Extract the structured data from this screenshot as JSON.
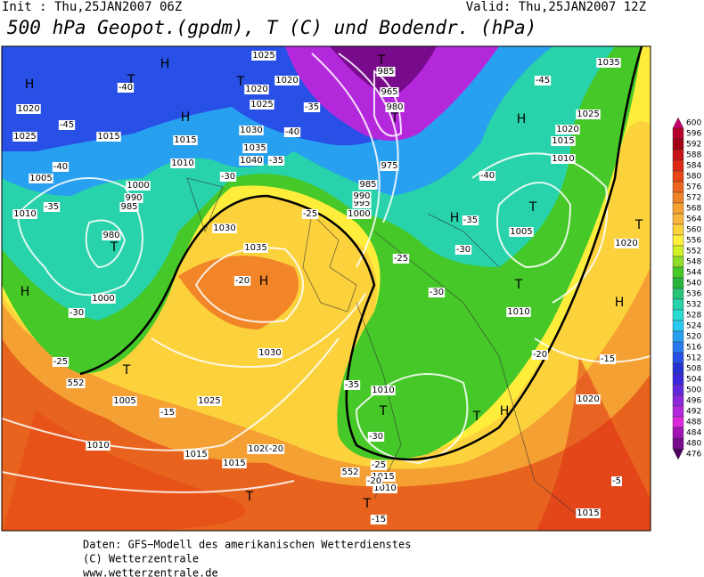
{
  "header": {
    "init": "Init : Thu,25JAN2007 06Z",
    "valid": "Valid: Thu,25JAN2007 12Z",
    "title": "500 hPa Geopot.(gpdm), T (C) und Bodendr. (hPa)"
  },
  "colorbar": [
    {
      "value": 600,
      "color": "#c8006e"
    },
    {
      "value": 596,
      "color": "#b4002a"
    },
    {
      "value": 592,
      "color": "#a00014"
    },
    {
      "value": 588,
      "color": "#c81414"
    },
    {
      "value": 584,
      "color": "#dc2814"
    },
    {
      "value": 580,
      "color": "#e64614"
    },
    {
      "value": 576,
      "color": "#ec641e"
    },
    {
      "value": 572,
      "color": "#f08228"
    },
    {
      "value": 568,
      "color": "#f5a032"
    },
    {
      "value": 564,
      "color": "#fab43c"
    },
    {
      "value": 560,
      "color": "#fcd23c"
    },
    {
      "value": 556,
      "color": "#fff03c"
    },
    {
      "value": 552,
      "color": "#d2f028"
    },
    {
      "value": 548,
      "color": "#8cdc28"
    },
    {
      "value": 544,
      "color": "#46c828"
    },
    {
      "value": 540,
      "color": "#28b43c"
    },
    {
      "value": 536,
      "color": "#28c378"
    },
    {
      "value": 532,
      "color": "#28d2aa"
    },
    {
      "value": 528,
      "color": "#28dcd2"
    },
    {
      "value": 524,
      "color": "#28c8f0"
    },
    {
      "value": 520,
      "color": "#28a0f0"
    },
    {
      "value": 516,
      "color": "#2878f0"
    },
    {
      "value": 512,
      "color": "#2850e6"
    },
    {
      "value": 508,
      "color": "#2832d2"
    },
    {
      "value": 504,
      "color": "#3c28dc"
    },
    {
      "value": 500,
      "color": "#6428dc"
    },
    {
      "value": 496,
      "color": "#8c28dc"
    },
    {
      "value": 492,
      "color": "#b428dc"
    },
    {
      "value": 488,
      "color": "#dc28dc"
    },
    {
      "value": 484,
      "color": "#a014b4"
    },
    {
      "value": 480,
      "color": "#780a8c"
    },
    {
      "value": 476,
      "color": "#500064"
    }
  ],
  "map_labels": [
    "H",
    "T",
    "1025",
    "1020",
    "T",
    "985",
    "965",
    "T",
    "980",
    "1035",
    "-45",
    "H",
    "1025",
    "1020",
    "1015",
    "1010",
    "-40",
    "T",
    "1005",
    "T",
    "1020",
    "H",
    "T",
    "1010",
    "-20",
    "-15",
    "1020",
    "-5",
    "1015",
    "H",
    "T",
    "-40",
    "1020",
    "-45",
    "1025",
    "1015",
    "-40",
    "1005",
    "1000",
    "990",
    "985",
    "1010",
    "-35",
    "T",
    "980",
    "-30",
    "1000",
    "H",
    "-25",
    "T",
    "1005",
    "-15",
    "1010",
    "1015",
    "H",
    "1030",
    "1035",
    "1040",
    "-40",
    "-35",
    "-30",
    "1030",
    "1035",
    "H",
    "-20",
    "1030",
    "1025",
    "1020",
    "-20",
    "T",
    "1015",
    "552",
    "1025",
    "1020",
    "1015",
    "1010",
    "-35",
    "1000",
    "995",
    "990",
    "985",
    "975",
    "-25",
    "H",
    "-35",
    "-30",
    "-25",
    "-30",
    "-35",
    "1010",
    "T",
    "-30",
    "T",
    "H",
    "-25",
    "1015",
    "1010",
    "-20",
    "T",
    "-15",
    "552"
  ],
  "footer": [
    "Daten: GFS−Modell des amerikanischen Wetterdienstes",
    "(C) Wetterzentrale",
    "www.wetterzentrale.de"
  ]
}
